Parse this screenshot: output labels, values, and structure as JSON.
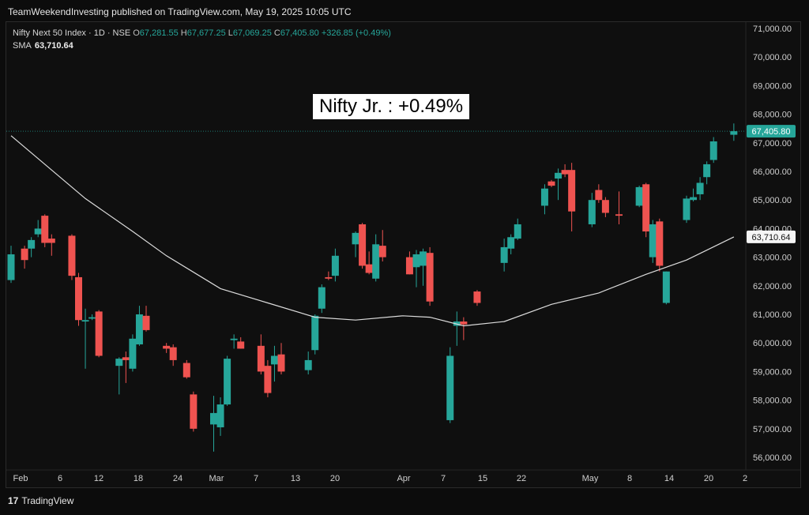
{
  "publisher_line": "TeamWeekendInvesting published on TradingView.com, May 19, 2025 10:05 UTC",
  "legend": {
    "symbol": "Nifty Next 50 Index · 1D · NSE",
    "o_label": "O",
    "o": "67,281.55",
    "h_label": "H",
    "h": "67,677.25",
    "l_label": "L",
    "l": "67,069.25",
    "c_label": "C",
    "c": "67,405.80",
    "change": "+326.85 (+0.49%)",
    "sma_label": "SMA",
    "sma_value": "63,710.64"
  },
  "annotation": "Nifty Jr. : +0.49%",
  "brand": {
    "logo": "17",
    "name": "TradingView"
  },
  "colors": {
    "up": "#26a69a",
    "down": "#ef5350",
    "sma": "#dcdcdc",
    "last_price_tag": "#26a69a"
  },
  "chart_data": {
    "type": "candlestick",
    "x_tick_labels": [
      "Feb",
      "6",
      "12",
      "18",
      "24",
      "Mar",
      "7",
      "13",
      "20",
      "Apr",
      "7",
      "15",
      "22",
      "May",
      "8",
      "14",
      "20",
      "2"
    ],
    "y_tick_labels": [
      "71,000.00",
      "70,000.00",
      "69,000.00",
      "68,000.00",
      "67,000.00",
      "66,000.00",
      "65,000.00",
      "64,000.00",
      "63,000.00",
      "62,000.00",
      "61,000.00",
      "60,000.00",
      "59,000.00",
      "58,000.00",
      "57,000.00",
      "56,000.00"
    ],
    "ylim": [
      55600,
      71400
    ],
    "last_price_label": "67,405.80",
    "sma_label": "63,710.64",
    "grid": false,
    "candles": [
      {
        "date": "2025-02-01",
        "o": 62200,
        "h": 63400,
        "l": 62100,
        "c": 63100
      },
      {
        "date": "2025-02-03",
        "o": 63300,
        "h": 63400,
        "l": 62600,
        "c": 62900
      },
      {
        "date": "2025-02-04",
        "o": 63300,
        "h": 63700,
        "l": 63000,
        "c": 63600
      },
      {
        "date": "2025-02-05",
        "o": 63800,
        "h": 64300,
        "l": 63700,
        "c": 64000
      },
      {
        "date": "2025-02-06",
        "o": 64450,
        "h": 64500,
        "l": 63350,
        "c": 63500
      },
      {
        "date": "2025-02-07",
        "o": 63650,
        "h": 63800,
        "l": 63050,
        "c": 63500
      },
      {
        "date": "2025-02-10",
        "o": 63750,
        "h": 63800,
        "l": 62200,
        "c": 62350
      },
      {
        "date": "2025-02-11",
        "o": 62300,
        "h": 62450,
        "l": 60600,
        "c": 60800
      },
      {
        "date": "2025-02-12",
        "o": 60750,
        "h": 61200,
        "l": 59100,
        "c": 60800
      },
      {
        "date": "2025-02-13",
        "o": 60850,
        "h": 61000,
        "l": 60800,
        "c": 60900
      },
      {
        "date": "2025-02-14",
        "o": 61100,
        "h": 61150,
        "l": 59500,
        "c": 59550
      },
      {
        "date": "2025-02-17",
        "o": 59200,
        "h": 59500,
        "l": 58200,
        "c": 59450
      },
      {
        "date": "2025-02-18",
        "o": 59500,
        "h": 59700,
        "l": 58600,
        "c": 59400
      },
      {
        "date": "2025-02-19",
        "o": 59100,
        "h": 60300,
        "l": 59000,
        "c": 60150
      },
      {
        "date": "2025-02-20",
        "o": 59950,
        "h": 61300,
        "l": 59900,
        "c": 61000
      },
      {
        "date": "2025-02-21",
        "o": 60950,
        "h": 61300,
        "l": 60400,
        "c": 60450
      },
      {
        "date": "2025-02-24",
        "o": 59900,
        "h": 60000,
        "l": 59650,
        "c": 59800
      },
      {
        "date": "2025-02-25",
        "o": 59850,
        "h": 59950,
        "l": 59200,
        "c": 59400
      },
      {
        "date": "2025-02-27",
        "o": 59300,
        "h": 59400,
        "l": 58750,
        "c": 58800
      },
      {
        "date": "2025-02-28",
        "o": 58200,
        "h": 58300,
        "l": 56900,
        "c": 57000
      },
      {
        "date": "2025-03-03",
        "o": 57150,
        "h": 58150,
        "l": 56200,
        "c": 57550
      },
      {
        "date": "2025-03-04",
        "o": 57050,
        "h": 58100,
        "l": 56750,
        "c": 57850
      },
      {
        "date": "2025-03-05",
        "o": 57850,
        "h": 59550,
        "l": 57800,
        "c": 59450
      },
      {
        "date": "2025-03-06",
        "o": 60100,
        "h": 60300,
        "l": 59800,
        "c": 60150
      },
      {
        "date": "2025-03-07",
        "o": 60050,
        "h": 60200,
        "l": 59800,
        "c": 59800
      },
      {
        "date": "2025-03-10",
        "o": 59900,
        "h": 60300,
        "l": 58900,
        "c": 59000
      },
      {
        "date": "2025-03-11",
        "o": 59200,
        "h": 59400,
        "l": 58100,
        "c": 58250
      },
      {
        "date": "2025-03-12",
        "o": 59250,
        "h": 59900,
        "l": 58650,
        "c": 59550
      },
      {
        "date": "2025-03-13",
        "o": 59600,
        "h": 60000,
        "l": 58900,
        "c": 59000
      },
      {
        "date": "2025-03-17",
        "o": 59050,
        "h": 59700,
        "l": 58900,
        "c": 59400
      },
      {
        "date": "2025-03-18",
        "o": 59750,
        "h": 61000,
        "l": 59600,
        "c": 60950
      },
      {
        "date": "2025-03-19",
        "o": 61200,
        "h": 62050,
        "l": 61050,
        "c": 61950
      },
      {
        "date": "2025-03-20",
        "o": 62300,
        "h": 62500,
        "l": 62200,
        "c": 62250
      },
      {
        "date": "2025-03-21",
        "o": 62350,
        "h": 63300,
        "l": 62150,
        "c": 63050
      },
      {
        "date": "2025-03-24",
        "o": 63450,
        "h": 63900,
        "l": 63000,
        "c": 63850
      },
      {
        "date": "2025-03-25",
        "o": 64150,
        "h": 64200,
        "l": 62600,
        "c": 62700
      },
      {
        "date": "2025-03-26",
        "o": 62750,
        "h": 63200,
        "l": 62400,
        "c": 62450
      },
      {
        "date": "2025-03-27",
        "o": 62250,
        "h": 63800,
        "l": 62150,
        "c": 63450
      },
      {
        "date": "2025-03-28",
        "o": 63400,
        "h": 63950,
        "l": 62850,
        "c": 63000
      },
      {
        "date": "2025-04-01",
        "o": 63000,
        "h": 63200,
        "l": 62400,
        "c": 62400
      },
      {
        "date": "2025-04-02",
        "o": 62650,
        "h": 63250,
        "l": 61950,
        "c": 63100
      },
      {
        "date": "2025-04-03",
        "o": 62700,
        "h": 63300,
        "l": 62000,
        "c": 63200
      },
      {
        "date": "2025-04-04",
        "o": 63150,
        "h": 63350,
        "l": 61300,
        "c": 61450
      },
      {
        "date": "2025-04-07",
        "o": 57300,
        "h": 59850,
        "l": 57200,
        "c": 59550
      },
      {
        "date": "2025-04-08",
        "o": 60600,
        "h": 61100,
        "l": 59900,
        "c": 60750
      },
      {
        "date": "2025-04-09",
        "o": 60750,
        "h": 60900,
        "l": 60100,
        "c": 60650
      },
      {
        "date": "2025-04-11",
        "o": 61800,
        "h": 61850,
        "l": 61300,
        "c": 61400
      },
      {
        "date": "2025-04-15",
        "o": 62800,
        "h": 63650,
        "l": 62500,
        "c": 63350
      },
      {
        "date": "2025-04-16",
        "o": 63300,
        "h": 63800,
        "l": 63100,
        "c": 63700
      },
      {
        "date": "2025-04-17",
        "o": 63650,
        "h": 64350,
        "l": 63600,
        "c": 64150
      },
      {
        "date": "2025-04-21",
        "o": 64800,
        "h": 65550,
        "l": 64500,
        "c": 65400
      },
      {
        "date": "2025-04-22",
        "o": 65650,
        "h": 65700,
        "l": 65450,
        "c": 65500
      },
      {
        "date": "2025-04-23",
        "o": 65750,
        "h": 66100,
        "l": 65000,
        "c": 65950
      },
      {
        "date": "2025-04-24",
        "o": 66050,
        "h": 66250,
        "l": 65800,
        "c": 65900
      },
      {
        "date": "2025-04-25",
        "o": 66050,
        "h": 66300,
        "l": 63900,
        "c": 64600
      },
      {
        "date": "2025-04-28",
        "o": 64150,
        "h": 65250,
        "l": 64050,
        "c": 65000
      },
      {
        "date": "2025-04-29",
        "o": 65350,
        "h": 65550,
        "l": 64900,
        "c": 65000
      },
      {
        "date": "2025-04-30",
        "o": 65000,
        "h": 65100,
        "l": 64400,
        "c": 64550
      },
      {
        "date": "2025-05-02",
        "o": 64500,
        "h": 65300,
        "l": 64150,
        "c": 64450
      },
      {
        "date": "2025-05-05",
        "o": 64800,
        "h": 65500,
        "l": 64750,
        "c": 65450
      },
      {
        "date": "2025-05-06",
        "o": 65550,
        "h": 65600,
        "l": 63700,
        "c": 63900
      },
      {
        "date": "2025-05-07",
        "o": 63000,
        "h": 64300,
        "l": 62800,
        "c": 64150
      },
      {
        "date": "2025-05-08",
        "o": 64250,
        "h": 64350,
        "l": 62500,
        "c": 62700
      },
      {
        "date": "2025-05-09",
        "o": 61400,
        "h": 62500,
        "l": 61350,
        "c": 62500
      },
      {
        "date": "2025-05-12",
        "o": 64300,
        "h": 65150,
        "l": 64200,
        "c": 65050
      },
      {
        "date": "2025-05-13",
        "o": 65000,
        "h": 65400,
        "l": 64950,
        "c": 65100
      },
      {
        "date": "2025-05-14",
        "o": 65200,
        "h": 65800,
        "l": 65000,
        "c": 65600
      },
      {
        "date": "2025-05-15",
        "o": 65800,
        "h": 66350,
        "l": 65550,
        "c": 66250
      },
      {
        "date": "2025-05-16",
        "o": 66400,
        "h": 67200,
        "l": 66300,
        "c": 67050
      },
      {
        "date": "2025-05-19",
        "o": 67281.55,
        "h": 67677.25,
        "l": 67069.25,
        "c": 67405.8
      }
    ],
    "sma": {
      "name": "SMA",
      "points": [
        {
          "date": "2025-02-01",
          "v": 67250
        },
        {
          "date": "2025-02-12",
          "v": 65050
        },
        {
          "date": "2025-02-19",
          "v": 63900
        },
        {
          "date": "2025-02-24",
          "v": 63050
        },
        {
          "date": "2025-03-04",
          "v": 61900
        },
        {
          "date": "2025-03-11",
          "v": 61400
        },
        {
          "date": "2025-03-18",
          "v": 60900
        },
        {
          "date": "2025-03-24",
          "v": 60800
        },
        {
          "date": "2025-03-31",
          "v": 60950
        },
        {
          "date": "2025-04-04",
          "v": 60900
        },
        {
          "date": "2025-04-09",
          "v": 60600
        },
        {
          "date": "2025-04-15",
          "v": 60750
        },
        {
          "date": "2025-04-22",
          "v": 61350
        },
        {
          "date": "2025-04-29",
          "v": 61750
        },
        {
          "date": "2025-05-06",
          "v": 62400
        },
        {
          "date": "2025-05-12",
          "v": 62900
        },
        {
          "date": "2025-05-19",
          "v": 63710.64
        }
      ]
    }
  }
}
